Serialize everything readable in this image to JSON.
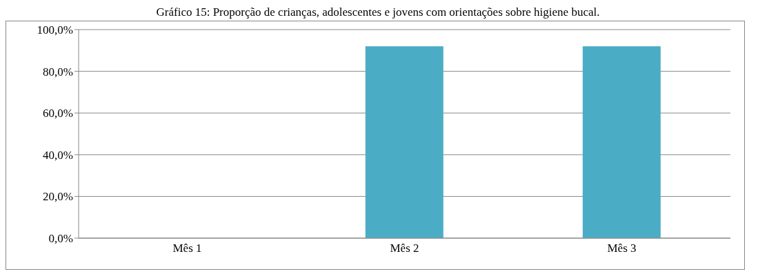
{
  "chart_data": {
    "type": "bar",
    "title": "Gráfico 15: Proporção de crianças, adolescentes e jovens com orientações sobre higiene bucal.",
    "categories": [
      "Mês 1",
      "Mês 2",
      "Mês 3"
    ],
    "values": [
      0,
      92,
      92
    ],
    "color": "#4bacc6",
    "ylim": [
      0,
      100
    ],
    "yticks": [
      {
        "value": 0,
        "label": "0,0%"
      },
      {
        "value": 20,
        "label": "20,0%"
      },
      {
        "value": 40,
        "label": "40,0%"
      },
      {
        "value": 60,
        "label": "60,0%"
      },
      {
        "value": 80,
        "label": "80,0%"
      },
      {
        "value": 100,
        "label": "100,0%"
      }
    ],
    "grid": "y",
    "legend": false
  }
}
